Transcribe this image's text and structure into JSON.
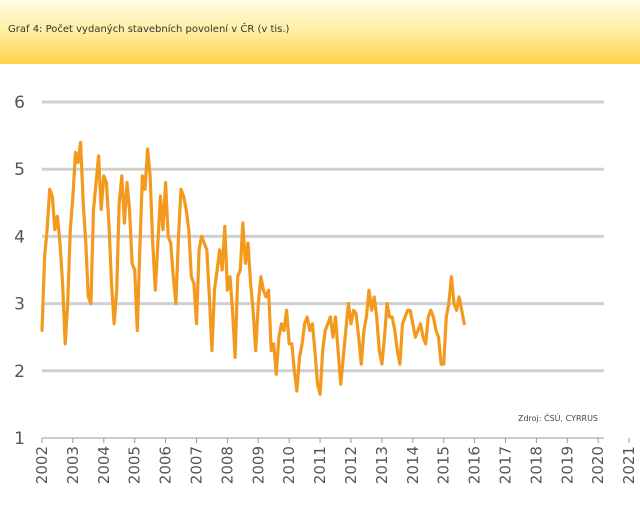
{
  "header": {
    "title": "Graf 4: Počet vydaných stavebních povolení v ČR (v tis.)"
  },
  "chart_data": {
    "type": "line",
    "title": "Graf 4: Počet vydaných stavebních povolení v ČR (v tis.)",
    "xlabel": "",
    "ylabel": "",
    "ylim": [
      1,
      6
    ],
    "yticks": [
      "1",
      "2",
      "3",
      "4",
      "5",
      "6"
    ],
    "xticks": [
      "2002",
      "2003",
      "2004",
      "2005",
      "2006",
      "2007",
      "2008",
      "2009",
      "2010",
      "2011",
      "2012",
      "2013",
      "2014",
      "2015",
      "2016",
      "2017",
      "2018",
      "2019",
      "2020",
      "2021"
    ],
    "grid": true,
    "source": "Zdroj: ČSÚ, CYRRUS",
    "colors": {
      "line": "#f39a1e",
      "grid": "#d0d0d0",
      "axis": "#999999"
    },
    "series": [
      {
        "name": "Počet vydaných stavebních povolení (v tis.)",
        "x_start": 2002.0,
        "step": 0.08333,
        "values": [
          2.6,
          3.7,
          4.1,
          4.7,
          4.6,
          4.1,
          4.3,
          3.9,
          3.3,
          2.4,
          3.0,
          4.1,
          4.6,
          5.25,
          5.1,
          5.4,
          4.5,
          3.9,
          3.1,
          3.0,
          4.4,
          4.8,
          5.2,
          4.4,
          4.9,
          4.8,
          4.2,
          3.3,
          2.7,
          3.2,
          4.5,
          4.9,
          4.2,
          4.8,
          4.4,
          3.6,
          3.5,
          2.6,
          3.8,
          4.9,
          4.7,
          5.3,
          4.9,
          3.9,
          3.2,
          3.9,
          4.6,
          4.1,
          4.8,
          4.0,
          3.9,
          3.4,
          3.0,
          4.0,
          4.7,
          4.6,
          4.4,
          4.1,
          3.4,
          3.3,
          2.7,
          3.8,
          4.0,
          3.9,
          3.8,
          3.1,
          2.3,
          3.2,
          3.5,
          3.8,
          3.5,
          4.15,
          3.2,
          3.4,
          2.9,
          2.2,
          3.4,
          3.5,
          4.2,
          3.6,
          3.9,
          3.3,
          2.9,
          2.3,
          3.0,
          3.4,
          3.2,
          3.1,
          3.2,
          2.3,
          2.4,
          1.95,
          2.5,
          2.7,
          2.6,
          2.9,
          2.4,
          2.4,
          2.0,
          1.7,
          2.2,
          2.4,
          2.7,
          2.8,
          2.6,
          2.7,
          2.3,
          1.8,
          1.65,
          2.3,
          2.6,
          2.7,
          2.8,
          2.5,
          2.8,
          2.3,
          1.8,
          2.2,
          2.6,
          3.0,
          2.7,
          2.9,
          2.85,
          2.5,
          2.1,
          2.6,
          2.8,
          3.2,
          2.9,
          3.1,
          2.8,
          2.3,
          2.1,
          2.5,
          3.0,
          2.8,
          2.8,
          2.6,
          2.3,
          2.1,
          2.7,
          2.8,
          2.9,
          2.9,
          2.7,
          2.5,
          2.6,
          2.7,
          2.5,
          2.4,
          2.8,
          2.9,
          2.8,
          2.6,
          2.5,
          2.1,
          2.1,
          2.8,
          3.0,
          3.4,
          3.0,
          2.9,
          3.1,
          2.9,
          2.7
        ]
      }
    ]
  }
}
